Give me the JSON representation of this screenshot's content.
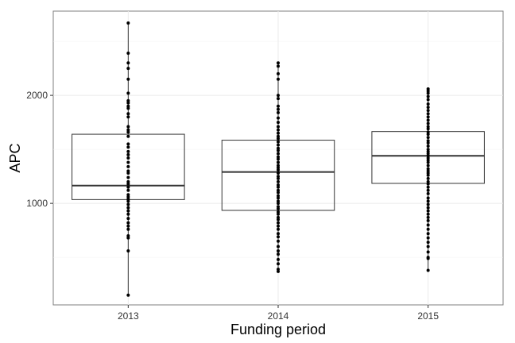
{
  "chart_data": {
    "type": "box",
    "xlabel": "Funding period",
    "ylabel": "APC",
    "categories": [
      "2013",
      "2014",
      "2015"
    ],
    "ylim": [
      60,
      2780
    ],
    "yticks": [
      1000,
      2000
    ],
    "ytick_labels": [
      "1000",
      "2000"
    ],
    "grid": true,
    "boxes": [
      {
        "category": "2013",
        "q1": 1035,
        "median": 1165,
        "q3": 1640,
        "whisker_low": 150,
        "whisker_high": 2670
      },
      {
        "category": "2014",
        "q1": 935,
        "median": 1290,
        "q3": 1585,
        "whisker_low": 370,
        "whisker_high": 2300
      },
      {
        "category": "2015",
        "q1": 1185,
        "median": 1440,
        "q3": 1665,
        "whisker_low": 380,
        "whisker_high": 2060
      }
    ],
    "points": [
      {
        "category": "2013",
        "values": [
          2670,
          2390,
          2300,
          2250,
          2150,
          2020,
          1950,
          1930,
          1900,
          1880,
          1830,
          1800,
          1710,
          1680,
          1660,
          1620,
          1550,
          1520,
          1480,
          1450,
          1420,
          1380,
          1340,
          1300,
          1280,
          1240,
          1200,
          1180,
          1150,
          1120,
          1080,
          1060,
          1040,
          1020,
          990,
          960,
          930,
          900,
          860,
          820,
          790,
          760,
          700,
          680,
          560,
          150
        ]
      },
      {
        "category": "2014",
        "values": [
          2300,
          2270,
          2200,
          2150,
          2000,
          1970,
          1900,
          1870,
          1840,
          1790,
          1750,
          1710,
          1680,
          1650,
          1620,
          1600,
          1570,
          1540,
          1510,
          1490,
          1460,
          1430,
          1410,
          1380,
          1350,
          1330,
          1310,
          1280,
          1250,
          1230,
          1200,
          1170,
          1150,
          1120,
          1100,
          1070,
          1050,
          1020,
          1000,
          970,
          950,
          920,
          900,
          870,
          850,
          820,
          790,
          760,
          720,
          690,
          650,
          600,
          560,
          530,
          480,
          440,
          390,
          370
        ]
      },
      {
        "category": "2015",
        "values": [
          2060,
          2040,
          2020,
          1990,
          1960,
          1920,
          1890,
          1860,
          1830,
          1800,
          1770,
          1740,
          1710,
          1690,
          1660,
          1640,
          1610,
          1580,
          1560,
          1530,
          1500,
          1480,
          1460,
          1440,
          1420,
          1400,
          1380,
          1350,
          1320,
          1300,
          1280,
          1260,
          1230,
          1200,
          1180,
          1150,
          1120,
          1090,
          1050,
          1020,
          990,
          960,
          930,
          900,
          870,
          840,
          800,
          760,
          720,
          680,
          640,
          600,
          550,
          500,
          490,
          380
        ]
      }
    ]
  }
}
